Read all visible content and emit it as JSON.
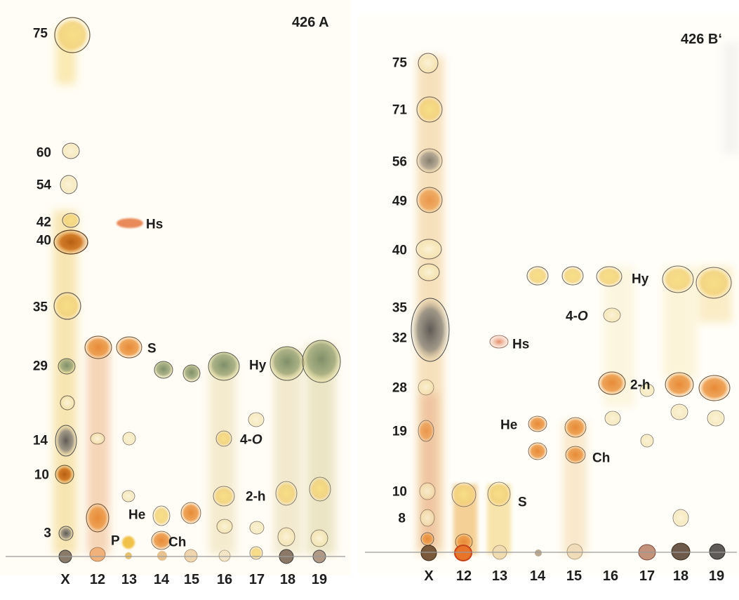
{
  "plate_a": {
    "title": "426 A",
    "rf_labels": [
      "75",
      "60",
      "54",
      "42",
      "40",
      "35",
      "29",
      "14",
      "10",
      "3"
    ],
    "lane_labels": [
      "X",
      "12",
      "13",
      "14",
      "15",
      "16",
      "17",
      "18",
      "19"
    ],
    "compound_labels": [
      "Hs",
      "S",
      "Hy",
      "4-O",
      "2-h",
      "He",
      "P",
      "Ch"
    ]
  },
  "plate_b": {
    "title": "426 B‘",
    "rf_labels": [
      "75",
      "71",
      "56",
      "49",
      "40",
      "35",
      "32",
      "28",
      "19",
      "10",
      "8"
    ],
    "lane_labels": [
      "X",
      "12",
      "13",
      "14",
      "15",
      "16",
      "17",
      "18",
      "19"
    ],
    "compound_labels": [
      "Hy",
      "4-O",
      "Hs",
      "2-h",
      "He",
      "Ch",
      "S"
    ]
  },
  "colors": {
    "background": "#ffffff",
    "baseline": "#9a9a9a",
    "yellow": "#f4d97a",
    "orange": "#e79a45",
    "dark_orange": "#c9701f",
    "grey_green": "#8f9a78",
    "dark_grey": "#6e6a64",
    "label_text": "#1d1d1d"
  }
}
